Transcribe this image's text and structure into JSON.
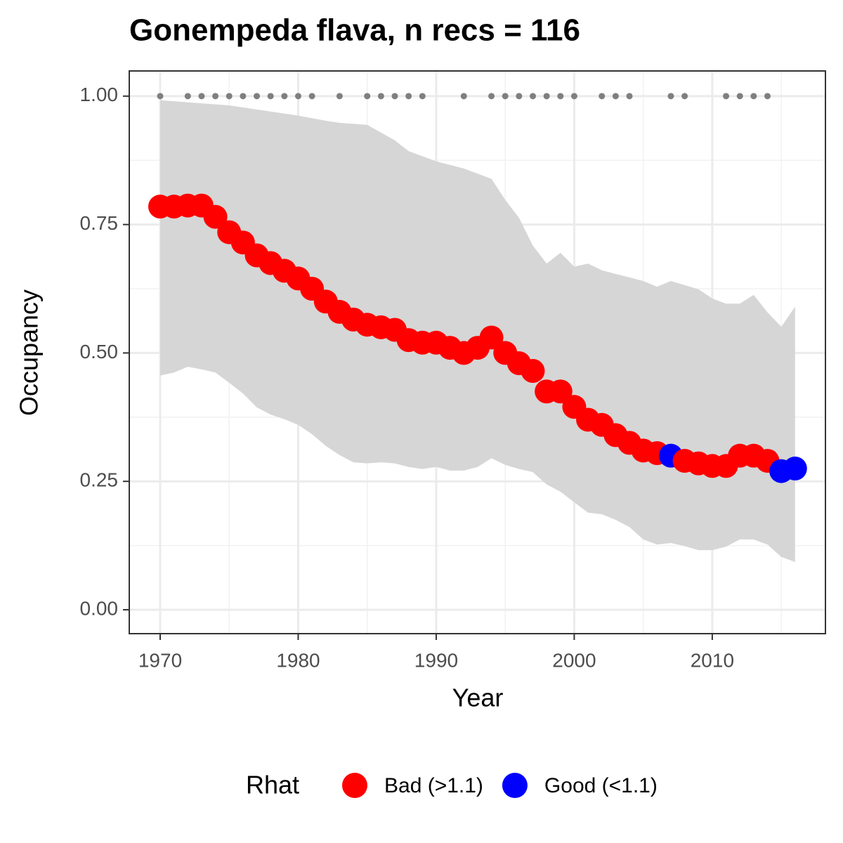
{
  "chart_data": {
    "type": "scatter",
    "title": "Gonempeda flava, n recs = 116",
    "xlabel": "Year",
    "ylabel": "Occupancy",
    "legend_title": "Rhat",
    "legend": "bottom",
    "x": [
      1970,
      1971,
      1972,
      1973,
      1974,
      1975,
      1976,
      1977,
      1978,
      1979,
      1980,
      1981,
      1982,
      1983,
      1984,
      1985,
      1986,
      1987,
      1988,
      1989,
      1990,
      1991,
      1992,
      1993,
      1994,
      1995,
      1996,
      1997,
      1998,
      1999,
      2000,
      2001,
      2002,
      2003,
      2004,
      2005,
      2006,
      2007,
      2008,
      2009,
      2010,
      2011,
      2012,
      2013,
      2014,
      2015,
      2016
    ],
    "series": [
      {
        "name": "Bad (>1.1)",
        "color": "#ff0000",
        "values": [
          0.785,
          0.785,
          0.787,
          0.787,
          0.765,
          0.735,
          0.715,
          0.69,
          0.675,
          0.66,
          0.645,
          0.625,
          0.6,
          0.58,
          0.565,
          0.555,
          0.55,
          0.545,
          0.525,
          0.52,
          0.52,
          0.51,
          0.5,
          0.51,
          0.53,
          0.5,
          0.48,
          0.465,
          0.425,
          0.425,
          0.395,
          0.37,
          0.36,
          0.34,
          0.325,
          0.31,
          0.305,
          null,
          0.29,
          0.285,
          0.28,
          0.28,
          0.3,
          0.3,
          0.29,
          null,
          null
        ]
      },
      {
        "name": "Good (<1.1)",
        "color": "#0000ff",
        "values": [
          null,
          null,
          null,
          null,
          null,
          null,
          null,
          null,
          null,
          null,
          null,
          null,
          null,
          null,
          null,
          null,
          null,
          null,
          null,
          null,
          null,
          null,
          null,
          null,
          null,
          null,
          null,
          null,
          null,
          null,
          null,
          null,
          null,
          null,
          null,
          null,
          null,
          0.3,
          null,
          null,
          null,
          null,
          null,
          null,
          null,
          0.27,
          0.275
        ]
      }
    ],
    "ribbon": {
      "color": "#d6d6d6",
      "upper": [
        0.992,
        0.99,
        0.988,
        0.986,
        0.984,
        0.982,
        0.978,
        0.974,
        0.97,
        0.966,
        0.962,
        0.957,
        0.952,
        0.948,
        0.946,
        0.944,
        0.929,
        0.914,
        0.893,
        0.883,
        0.873,
        0.866,
        0.859,
        0.849,
        0.839,
        0.798,
        0.763,
        0.709,
        0.674,
        0.695,
        0.668,
        0.674,
        0.661,
        0.654,
        0.647,
        0.64,
        0.629,
        0.64,
        0.632,
        0.624,
        0.606,
        0.596,
        0.596,
        0.613,
        0.579,
        0.551,
        0.59
      ],
      "lower": [
        0.456,
        0.462,
        0.473,
        0.468,
        0.462,
        0.442,
        0.421,
        0.394,
        0.38,
        0.371,
        0.36,
        0.342,
        0.319,
        0.301,
        0.287,
        0.285,
        0.287,
        0.285,
        0.278,
        0.274,
        0.278,
        0.271,
        0.271,
        0.278,
        0.295,
        0.282,
        0.274,
        0.268,
        0.244,
        0.23,
        0.209,
        0.189,
        0.186,
        0.175,
        0.161,
        0.137,
        0.127,
        0.13,
        0.124,
        0.116,
        0.116,
        0.123,
        0.137,
        0.137,
        0.127,
        0.103,
        0.093
      ]
    },
    "records": {
      "color": "#7f7f7f",
      "x": [
        1970,
        1972,
        1973,
        1974,
        1975,
        1976,
        1977,
        1978,
        1979,
        1980,
        1981,
        1983,
        1985,
        1986,
        1987,
        1988,
        1989,
        1992,
        1994,
        1995,
        1996,
        1997,
        1998,
        1999,
        2000,
        2002,
        2003,
        2004,
        2007,
        2008,
        2011,
        2012,
        2013,
        2014
      ],
      "values": [
        1,
        1,
        1,
        1,
        1,
        1,
        1,
        1,
        1,
        1,
        1,
        1,
        1,
        1,
        1,
        1,
        1,
        1,
        1,
        1,
        1,
        1,
        1,
        1,
        1,
        1,
        1,
        1,
        1,
        1,
        1,
        1,
        1,
        1
      ]
    },
    "xlim": [
      1967.76,
      2018.2
    ],
    "xticks": [
      1970,
      1980,
      1990,
      2000,
      2010
    ],
    "ylim": [
      -0.0465,
      1.049
    ],
    "yticks": [
      {
        "value": 0,
        "label": "0.00"
      },
      {
        "value": 0.25,
        "label": "0.25"
      },
      {
        "value": 0.5,
        "label": "0.50"
      },
      {
        "value": 0.75,
        "label": "0.75"
      },
      {
        "value": 1,
        "label": "1.00"
      }
    ],
    "grid": true
  }
}
